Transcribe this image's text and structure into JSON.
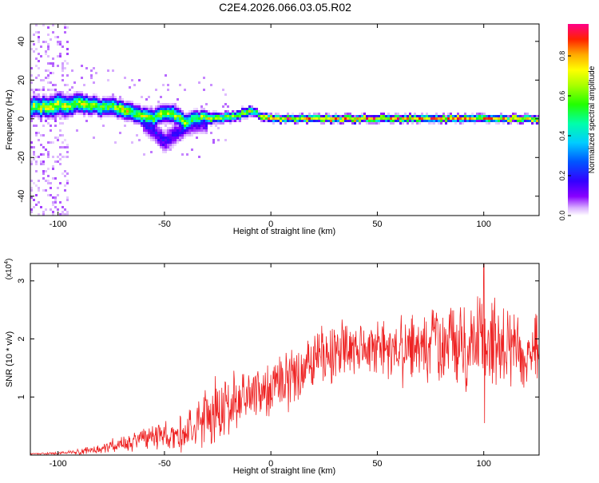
{
  "figure": {
    "title": "C2E4.2026.066.03.05.R02"
  },
  "chart_data": [
    {
      "type": "heatmap",
      "title": "C2E4.2026.066.03.05.R02",
      "xlabel": "Height of straight line (km)",
      "ylabel": "Frequency (Hz)",
      "xlim": [
        -113,
        126
      ],
      "ylim": [
        -50,
        49
      ],
      "xticks": [
        -100,
        -50,
        0,
        50,
        100
      ],
      "xtick_labels": [
        "-100",
        "-50",
        "0",
        "50",
        "100"
      ],
      "yticks": [
        -40,
        -20,
        0,
        20,
        40
      ],
      "ytick_labels": [
        "-40",
        "-20",
        "0",
        "20",
        "40"
      ],
      "colorbar": {
        "label": "Normalized spectral amplitude",
        "range": [
          0,
          0.96
        ],
        "ticks": [
          0.0,
          0.2,
          0.4,
          0.6,
          0.8
        ],
        "tick_labels": [
          "0.0",
          "0.2",
          "0.4",
          "0.6",
          "0.8"
        ],
        "colormap": "rainbow (purple-blue-cyan-green-yellow-orange-red-magenta)"
      },
      "ridge": {
        "x": [
          -113,
          -105,
          -100,
          -95,
          -90,
          -85,
          -80,
          -75,
          -70,
          -65,
          -60,
          -55,
          -50,
          -45,
          -40,
          -35,
          -30,
          -25,
          -20,
          -15,
          -10,
          -5,
          0,
          10,
          20,
          40,
          60,
          80,
          100,
          126
        ],
        "y": [
          6,
          6,
          7,
          7,
          8,
          7,
          6,
          6,
          5,
          3,
          1,
          0,
          3,
          2,
          -2,
          0,
          1,
          0,
          1,
          2,
          4,
          2,
          0,
          0,
          0,
          0,
          0,
          0,
          0,
          0
        ],
        "width_hz": [
          8,
          8,
          9,
          8,
          8,
          7,
          7,
          7,
          7,
          7,
          7,
          7,
          7,
          7,
          7,
          6,
          5,
          4,
          4,
          4,
          4,
          3,
          3,
          3,
          3,
          3,
          3,
          3,
          3,
          3
        ]
      },
      "secondary_branch": {
        "x": [
          -60,
          -55,
          -50,
          -45,
          -40,
          -35,
          -30
        ],
        "y": [
          -2,
          -6,
          -12,
          -8,
          -4,
          -2,
          -2
        ]
      },
      "noisy_region_x": [
        -113,
        -95
      ]
    },
    {
      "type": "line",
      "title": "",
      "xlabel": "Height of straight line (km)",
      "ylabel": "SNR (10 * v/v)",
      "multiplier_label": "(x10",
      "multiplier_exponent": "4",
      "xlim": [
        -113,
        126
      ],
      "ylim": [
        0,
        3.3
      ],
      "xticks": [
        -100,
        -50,
        0,
        50,
        100
      ],
      "xtick_labels": [
        "-100",
        "-50",
        "0",
        "50",
        "100"
      ],
      "yticks": [
        1,
        2,
        3
      ],
      "ytick_labels": [
        "1",
        "2",
        "3"
      ],
      "color": "#ee2222",
      "series": [
        {
          "name": "SNR",
          "x": [
            -113,
            -100,
            -90,
            -80,
            -75,
            -70,
            -65,
            -60,
            -55,
            -50,
            -45,
            -40,
            -35,
            -30,
            -25,
            -20,
            -15,
            -10,
            -5,
            0,
            5,
            10,
            15,
            20,
            25,
            30,
            40,
            50,
            60,
            70,
            80,
            90,
            100,
            110,
            120,
            126
          ],
          "mean": [
            0.02,
            0.03,
            0.06,
            0.1,
            0.15,
            0.2,
            0.25,
            0.3,
            0.3,
            0.35,
            0.32,
            0.4,
            0.55,
            0.7,
            0.75,
            0.85,
            0.95,
            1.05,
            1.1,
            1.15,
            1.25,
            1.35,
            1.5,
            1.6,
            1.7,
            1.8,
            1.85,
            1.85,
            1.8,
            1.85,
            1.9,
            1.95,
            1.95,
            1.9,
            1.85,
            1.8
          ],
          "spread": [
            0.01,
            0.02,
            0.05,
            0.08,
            0.12,
            0.15,
            0.2,
            0.25,
            0.25,
            0.25,
            0.25,
            0.35,
            0.45,
            0.55,
            0.6,
            0.55,
            0.45,
            0.45,
            0.45,
            0.45,
            0.5,
            0.5,
            0.5,
            0.5,
            0.55,
            0.5,
            0.45,
            0.45,
            0.55,
            0.6,
            0.7,
            0.75,
            0.85,
            0.75,
            0.65,
            0.6
          ]
        }
      ],
      "peak": {
        "x": 100,
        "y": 3.3
      },
      "min_dip": {
        "x": 100,
        "y": 0.55
      }
    }
  ]
}
